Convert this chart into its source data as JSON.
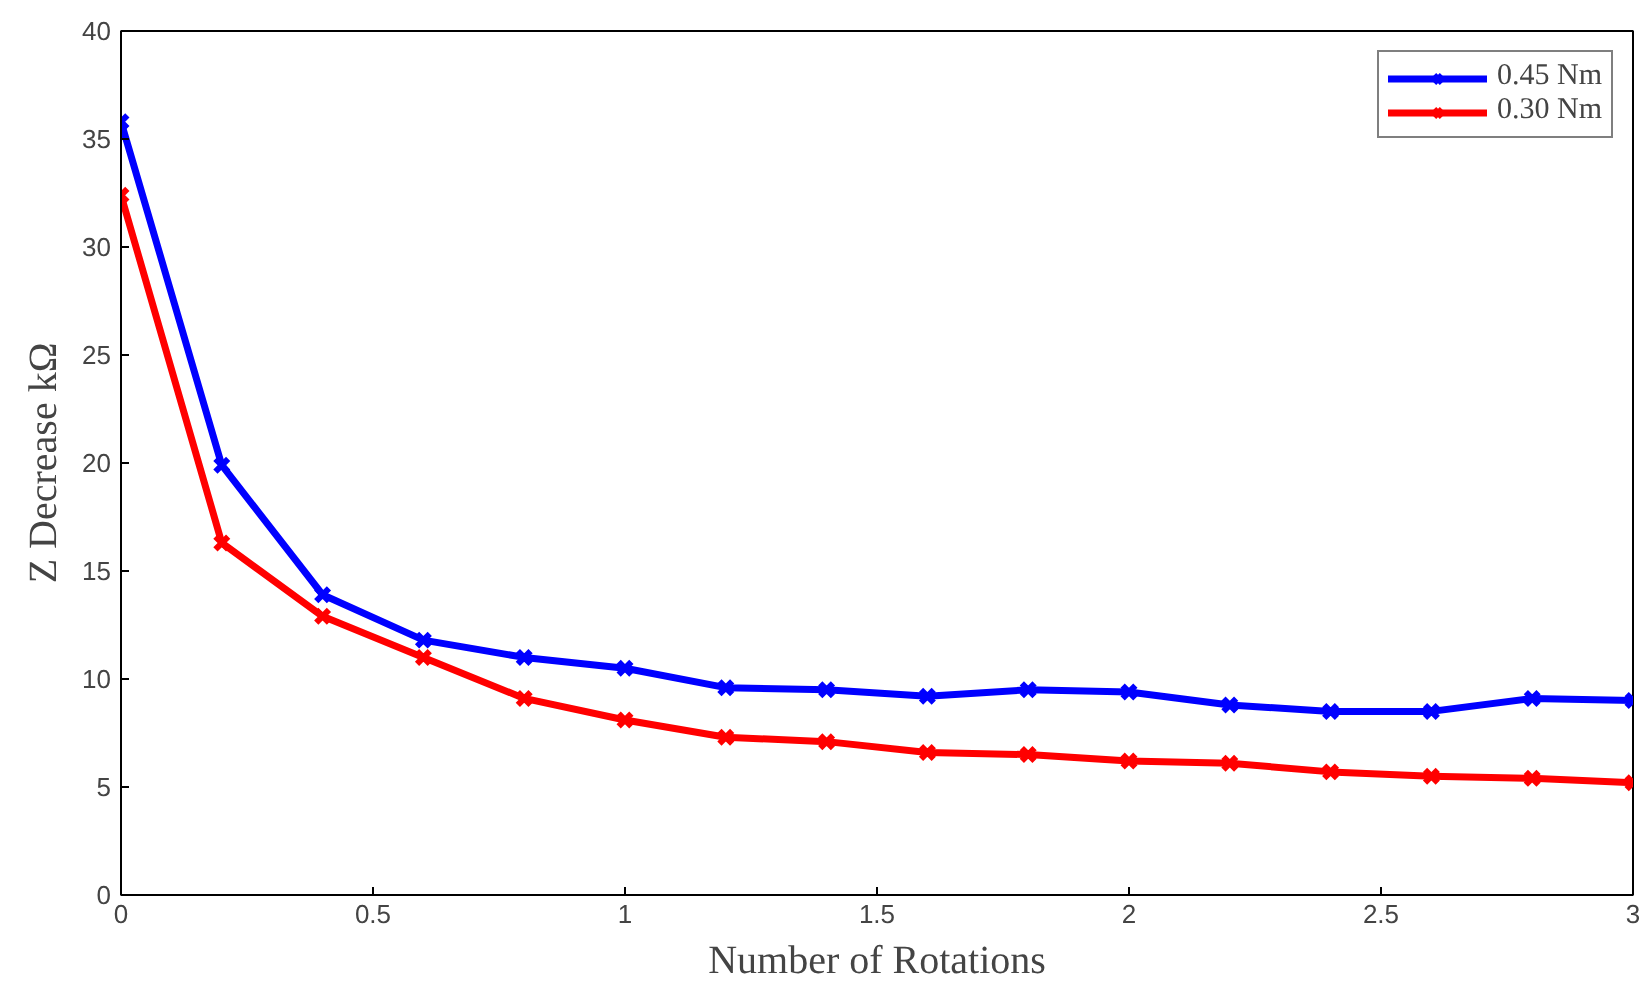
{
  "chart_data": {
    "type": "line",
    "xlabel": "Number of Rotations",
    "ylabel": "Z Decrease kΩ",
    "x": [
      0,
      0.2,
      0.4,
      0.6,
      0.8,
      1.0,
      1.2,
      1.4,
      1.6,
      1.8,
      2.0,
      2.2,
      2.4,
      2.6,
      2.8,
      3.0
    ],
    "series": [
      {
        "name": "0.45 Nm",
        "color": "#0000ff",
        "values": [
          35.8,
          19.9,
          13.9,
          11.8,
          11.0,
          10.5,
          9.6,
          9.5,
          9.2,
          9.5,
          9.4,
          8.8,
          8.5,
          8.5,
          9.1,
          9.0
        ]
      },
      {
        "name": "0.30 Nm",
        "color": "#ff0000",
        "values": [
          32.4,
          16.3,
          12.9,
          11.0,
          9.1,
          8.1,
          7.3,
          7.1,
          6.6,
          6.5,
          6.2,
          6.1,
          5.7,
          5.5,
          5.4,
          5.2
        ]
      }
    ],
    "xlim": [
      0,
      3
    ],
    "ylim": [
      0,
      40
    ],
    "xticks": [
      0,
      0.5,
      1,
      1.5,
      2,
      2.5,
      3
    ],
    "yticks": [
      0,
      5,
      10,
      15,
      20,
      25,
      30,
      35,
      40
    ],
    "grid": false,
    "legend": "top right",
    "marker": "cross",
    "line_style": "solid"
  }
}
